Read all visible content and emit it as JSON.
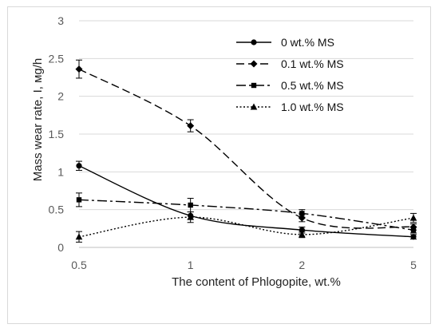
{
  "chart_data": {
    "type": "line",
    "title": "",
    "xlabel": "The content of Phlogopite, wt.%",
    "ylabel": "Mass wear rate, I, мg/h",
    "categories": [
      "0.5",
      "1",
      "2",
      "5"
    ],
    "ylim": [
      0,
      3
    ],
    "yticks": [
      "0",
      "0.5",
      "1",
      "1.5",
      "2",
      "2.5",
      "3"
    ],
    "grid": true,
    "legend_position": "top-right",
    "series": [
      {
        "name": "0  wt.% MS",
        "values": [
          1.08,
          0.42,
          0.23,
          0.14
        ],
        "errors": [
          0.06,
          0.05,
          0.04,
          0.03
        ],
        "dash": "solid",
        "marker": "circle"
      },
      {
        "name": "0.1 wt.% MS",
        "values": [
          2.36,
          1.61,
          0.39,
          0.27
        ],
        "errors": [
          0.12,
          0.08,
          0.05,
          0.04
        ],
        "dash": "dash",
        "marker": "diamond"
      },
      {
        "name": "0.5 wt.% MS",
        "values": [
          0.63,
          0.56,
          0.45,
          0.23
        ],
        "errors": [
          0.09,
          0.09,
          0.05,
          0.04
        ],
        "dash": "dashdot",
        "marker": "square"
      },
      {
        "name": "1.0 wt.% MS",
        "values": [
          0.14,
          0.4,
          0.17,
          0.39
        ],
        "errors": [
          0.07,
          0.07,
          0.04,
          0.06
        ],
        "dash": "dot",
        "marker": "triangle"
      }
    ],
    "colors": {
      "line": "#000000",
      "grid": "#d9d9d9",
      "tick_text": "#595959"
    }
  }
}
